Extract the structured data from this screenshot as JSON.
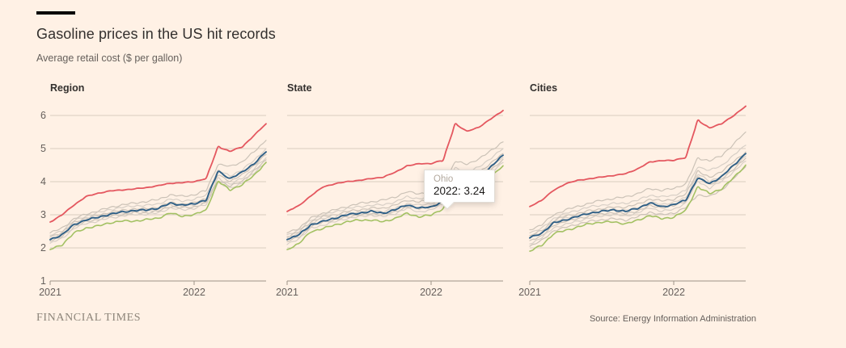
{
  "page": {
    "title": "Gasoline prices in the US hit records",
    "subtitle": "Average retail cost ($ per gallon)",
    "brand": "FINANCIAL TIMES",
    "source": "Source: Energy Information Administration"
  },
  "colors": {
    "background": "#fff1e5",
    "red": "#e4575f",
    "blue": "#2e5f86",
    "green": "#a3c163",
    "gray": "#cbc2b7",
    "gray_alt": "#d7cfc6",
    "grid": "#d8cdc0",
    "axis": "#9c9488",
    "text_dark": "#33302e",
    "text_muted": "#66605c"
  },
  "tooltip": {
    "series_label": "Ohio",
    "value_text": "2022: 3.24"
  },
  "chart_data": [
    {
      "type": "line",
      "title": "Region",
      "x": [
        "2021-01",
        "2021-02",
        "2021-03",
        "2021-04",
        "2021-05",
        "2021-06",
        "2021-07",
        "2021-08",
        "2021-09",
        "2021-10",
        "2021-11",
        "2021-12",
        "2022-01",
        "2022-02",
        "2022-03",
        "2022-04",
        "2022-05",
        "2022-06",
        "2022-07"
      ],
      "xticks": [
        "2021",
        "2022"
      ],
      "yticks": [
        1,
        2,
        3,
        4,
        5,
        6
      ],
      "ylim": [
        1,
        6.5
      ],
      "grid": true,
      "legend": false,
      "series": [
        {
          "name": "gray-line-1",
          "color": "gray",
          "values": [
            2.45,
            2.6,
            2.88,
            3.02,
            3.12,
            3.22,
            3.3,
            3.35,
            3.4,
            3.46,
            3.6,
            3.56,
            3.6,
            3.74,
            4.52,
            4.46,
            4.6,
            4.9,
            5.25
          ]
        },
        {
          "name": "gray-line-2",
          "color": "gray",
          "values": [
            2.38,
            2.52,
            2.82,
            2.96,
            3.06,
            3.16,
            3.22,
            3.27,
            3.28,
            3.33,
            3.47,
            3.42,
            3.46,
            3.6,
            4.33,
            4.18,
            4.35,
            4.65,
            5.0
          ]
        },
        {
          "name": "gray-line-3",
          "color": "gray",
          "values": [
            2.33,
            2.47,
            2.77,
            2.91,
            2.98,
            3.08,
            3.13,
            3.18,
            3.18,
            3.23,
            3.37,
            3.32,
            3.36,
            3.5,
            4.2,
            4.02,
            4.2,
            4.5,
            4.82
          ]
        },
        {
          "name": "gray-line-4",
          "color": "gray",
          "values": [
            2.28,
            2.42,
            2.72,
            2.86,
            2.92,
            3.02,
            3.06,
            3.11,
            3.11,
            3.16,
            3.3,
            3.26,
            3.3,
            3.42,
            4.1,
            3.92,
            4.1,
            4.4,
            4.72
          ]
        },
        {
          "name": "gray-line-5",
          "color": "gray",
          "values": [
            2.2,
            2.34,
            2.64,
            2.79,
            2.86,
            2.96,
            3.01,
            3.06,
            3.06,
            3.11,
            3.25,
            3.21,
            3.24,
            3.36,
            4.04,
            3.86,
            4.02,
            4.32,
            4.66
          ]
        },
        {
          "name": "gray-line-6",
          "color": "gray",
          "values": [
            2.14,
            2.29,
            2.59,
            2.74,
            2.81,
            2.91,
            2.96,
            3.01,
            3.01,
            3.06,
            3.2,
            3.15,
            3.19,
            3.31,
            3.96,
            3.8,
            3.96,
            4.26,
            4.6
          ]
        },
        {
          "name": "green-line",
          "color": "green",
          "values": [
            1.95,
            2.1,
            2.45,
            2.6,
            2.66,
            2.76,
            2.81,
            2.81,
            2.85,
            2.9,
            3.05,
            2.96,
            3.0,
            3.15,
            4.0,
            3.76,
            3.9,
            4.2,
            4.58
          ]
        },
        {
          "name": "blue-line",
          "color": "blue",
          "values": [
            2.25,
            2.4,
            2.7,
            2.85,
            2.92,
            3.02,
            3.08,
            3.13,
            3.14,
            3.2,
            3.34,
            3.3,
            3.32,
            3.46,
            4.3,
            4.1,
            4.28,
            4.55,
            4.9
          ]
        },
        {
          "name": "red-line",
          "color": "red",
          "values": [
            2.78,
            3.0,
            3.3,
            3.55,
            3.65,
            3.72,
            3.75,
            3.78,
            3.82,
            3.88,
            3.95,
            3.97,
            4.0,
            4.1,
            5.05,
            4.92,
            5.05,
            5.4,
            5.75
          ]
        }
      ]
    },
    {
      "type": "line",
      "title": "State",
      "x": [
        "2021-01",
        "2021-02",
        "2021-03",
        "2021-04",
        "2021-05",
        "2021-06",
        "2021-07",
        "2021-08",
        "2021-09",
        "2021-10",
        "2021-11",
        "2021-12",
        "2022-01",
        "2022-02",
        "2022-03",
        "2022-04",
        "2022-05",
        "2022-06",
        "2022-07"
      ],
      "xticks": [
        "2021",
        "2022"
      ],
      "yticks": [
        1,
        2,
        3,
        4,
        5,
        6
      ],
      "ylim": [
        1,
        6.5
      ],
      "grid": true,
      "legend": false,
      "series": [
        {
          "name": "gray-line-1",
          "color": "gray",
          "values": [
            2.45,
            2.6,
            2.9,
            3.05,
            3.15,
            3.25,
            3.34,
            3.39,
            3.44,
            3.54,
            3.69,
            3.64,
            3.69,
            3.84,
            4.6,
            4.54,
            4.68,
            4.95,
            5.2
          ]
        },
        {
          "name": "gray-line-2",
          "color": "gray",
          "values": [
            2.4,
            2.54,
            2.84,
            2.99,
            3.09,
            3.19,
            3.24,
            3.29,
            3.3,
            3.39,
            3.54,
            3.49,
            3.54,
            3.69,
            4.4,
            4.29,
            4.44,
            4.72,
            5.0
          ]
        },
        {
          "name": "gray-line-3",
          "color": "gray",
          "values": [
            2.34,
            2.49,
            2.79,
            2.94,
            3.0,
            3.1,
            3.15,
            3.2,
            3.2,
            3.29,
            3.44,
            3.39,
            3.44,
            3.59,
            4.29,
            4.09,
            4.29,
            4.56,
            4.85
          ]
        },
        {
          "name": "gray-line-4",
          "color": "gray",
          "values": [
            2.29,
            2.44,
            2.74,
            2.89,
            2.94,
            3.04,
            3.09,
            3.14,
            3.1,
            3.19,
            3.34,
            3.29,
            3.34,
            3.49,
            4.19,
            3.99,
            4.14,
            4.44,
            4.74
          ]
        },
        {
          "name": "gray-line-5",
          "color": "gray",
          "values": [
            2.19,
            2.34,
            2.64,
            2.79,
            2.84,
            2.94,
            2.99,
            3.04,
            3.0,
            3.09,
            3.24,
            3.19,
            3.24,
            3.39,
            4.09,
            3.89,
            4.04,
            4.36,
            4.68
          ]
        },
        {
          "name": "gray-line-6",
          "color": "gray",
          "values": [
            2.1,
            2.29,
            2.59,
            2.69,
            2.79,
            2.89,
            2.94,
            2.99,
            2.94,
            3.04,
            3.19,
            3.09,
            3.14,
            3.34,
            3.99,
            3.79,
            3.99,
            4.28,
            4.58
          ]
        },
        {
          "name": "green-line",
          "color": "green",
          "values": [
            1.95,
            2.14,
            2.49,
            2.59,
            2.69,
            2.79,
            2.84,
            2.84,
            2.79,
            2.89,
            3.04,
            2.94,
            2.99,
            3.19,
            3.89,
            3.69,
            3.84,
            4.15,
            4.48
          ]
        },
        {
          "name": "Ohio",
          "color": "blue",
          "values": [
            2.25,
            2.4,
            2.7,
            2.8,
            2.9,
            3.0,
            3.05,
            3.1,
            3.05,
            3.15,
            3.3,
            3.2,
            3.24,
            3.4,
            4.05,
            3.9,
            4.1,
            4.45,
            4.8
          ]
        },
        {
          "name": "red-line",
          "color": "red",
          "values": [
            3.1,
            3.28,
            3.58,
            3.84,
            3.94,
            4.0,
            4.04,
            4.09,
            4.14,
            4.28,
            4.48,
            4.54,
            4.55,
            4.65,
            5.74,
            5.52,
            5.65,
            5.9,
            6.15
          ]
        }
      ]
    },
    {
      "type": "line",
      "title": "Cities",
      "x": [
        "2021-01",
        "2021-02",
        "2021-03",
        "2021-04",
        "2021-05",
        "2021-06",
        "2021-07",
        "2021-08",
        "2021-09",
        "2021-10",
        "2021-11",
        "2021-12",
        "2022-01",
        "2022-02",
        "2022-03",
        "2022-04",
        "2022-05",
        "2022-06",
        "2022-07"
      ],
      "xticks": [
        "2021",
        "2022"
      ],
      "yticks": [
        1,
        2,
        3,
        4,
        5,
        6
      ],
      "ylim": [
        1,
        6.5
      ],
      "grid": true,
      "legend": false,
      "series": [
        {
          "name": "gray-line-1",
          "color": "gray",
          "values": [
            2.55,
            2.7,
            3.0,
            3.15,
            3.25,
            3.35,
            3.44,
            3.49,
            3.54,
            3.64,
            3.79,
            3.74,
            3.79,
            3.94,
            4.7,
            4.64,
            4.78,
            5.15,
            5.5
          ]
        },
        {
          "name": "gray-line-2",
          "color": "gray",
          "values": [
            2.45,
            2.59,
            2.89,
            3.04,
            3.14,
            3.24,
            3.29,
            3.34,
            3.35,
            3.44,
            3.59,
            3.54,
            3.59,
            3.74,
            4.45,
            4.34,
            4.49,
            4.8,
            5.1
          ]
        },
        {
          "name": "gray-line-3",
          "color": "gray",
          "values": [
            2.37,
            2.52,
            2.82,
            2.97,
            3.03,
            3.13,
            3.18,
            3.23,
            3.23,
            3.32,
            3.47,
            3.42,
            3.47,
            3.62,
            4.32,
            4.12,
            4.32,
            4.6,
            4.9
          ]
        },
        {
          "name": "gray-line-4",
          "color": "gray",
          "values": [
            2.32,
            2.47,
            2.77,
            2.92,
            2.97,
            3.07,
            3.12,
            3.17,
            3.13,
            3.22,
            3.37,
            3.32,
            3.37,
            3.52,
            4.22,
            4.02,
            4.17,
            4.47,
            4.77
          ]
        },
        {
          "name": "gray-line-5",
          "color": "gray",
          "values": [
            2.22,
            2.37,
            2.67,
            2.82,
            2.87,
            2.97,
            3.02,
            3.07,
            3.03,
            3.12,
            3.27,
            3.22,
            3.27,
            3.42,
            4.12,
            3.92,
            4.07,
            4.39,
            4.71
          ]
        },
        {
          "name": "gray-line-6",
          "color": "gray",
          "values": [
            2.12,
            2.31,
            2.61,
            2.71,
            2.81,
            2.91,
            2.96,
            3.01,
            2.96,
            3.06,
            3.21,
            3.11,
            3.16,
            3.36,
            4.01,
            3.81,
            4.01,
            4.3,
            4.62
          ]
        },
        {
          "name": "gray-line-7",
          "color": "gray",
          "values": [
            2.05,
            2.22,
            2.52,
            2.62,
            2.72,
            2.8,
            2.85,
            2.88,
            2.84,
            2.94,
            3.08,
            3.0,
            3.05,
            3.22,
            3.6,
            3.55,
            3.75,
            4.1,
            4.45
          ]
        },
        {
          "name": "green-line",
          "color": "green",
          "values": [
            1.9,
            2.08,
            2.43,
            2.53,
            2.63,
            2.73,
            2.78,
            2.78,
            2.73,
            2.83,
            2.98,
            2.88,
            2.93,
            3.13,
            3.84,
            3.64,
            3.79,
            4.12,
            4.5
          ]
        },
        {
          "name": "blue-line",
          "color": "blue",
          "values": [
            2.3,
            2.45,
            2.75,
            2.85,
            2.95,
            3.05,
            3.1,
            3.15,
            3.1,
            3.2,
            3.35,
            3.25,
            3.3,
            3.45,
            4.1,
            3.95,
            4.15,
            4.5,
            4.85
          ]
        },
        {
          "name": "red-line",
          "color": "red",
          "values": [
            3.25,
            3.44,
            3.74,
            3.94,
            4.04,
            4.09,
            4.14,
            4.19,
            4.24,
            4.39,
            4.59,
            4.64,
            4.64,
            4.74,
            5.84,
            5.63,
            5.75,
            6.0,
            6.28
          ]
        }
      ]
    }
  ]
}
